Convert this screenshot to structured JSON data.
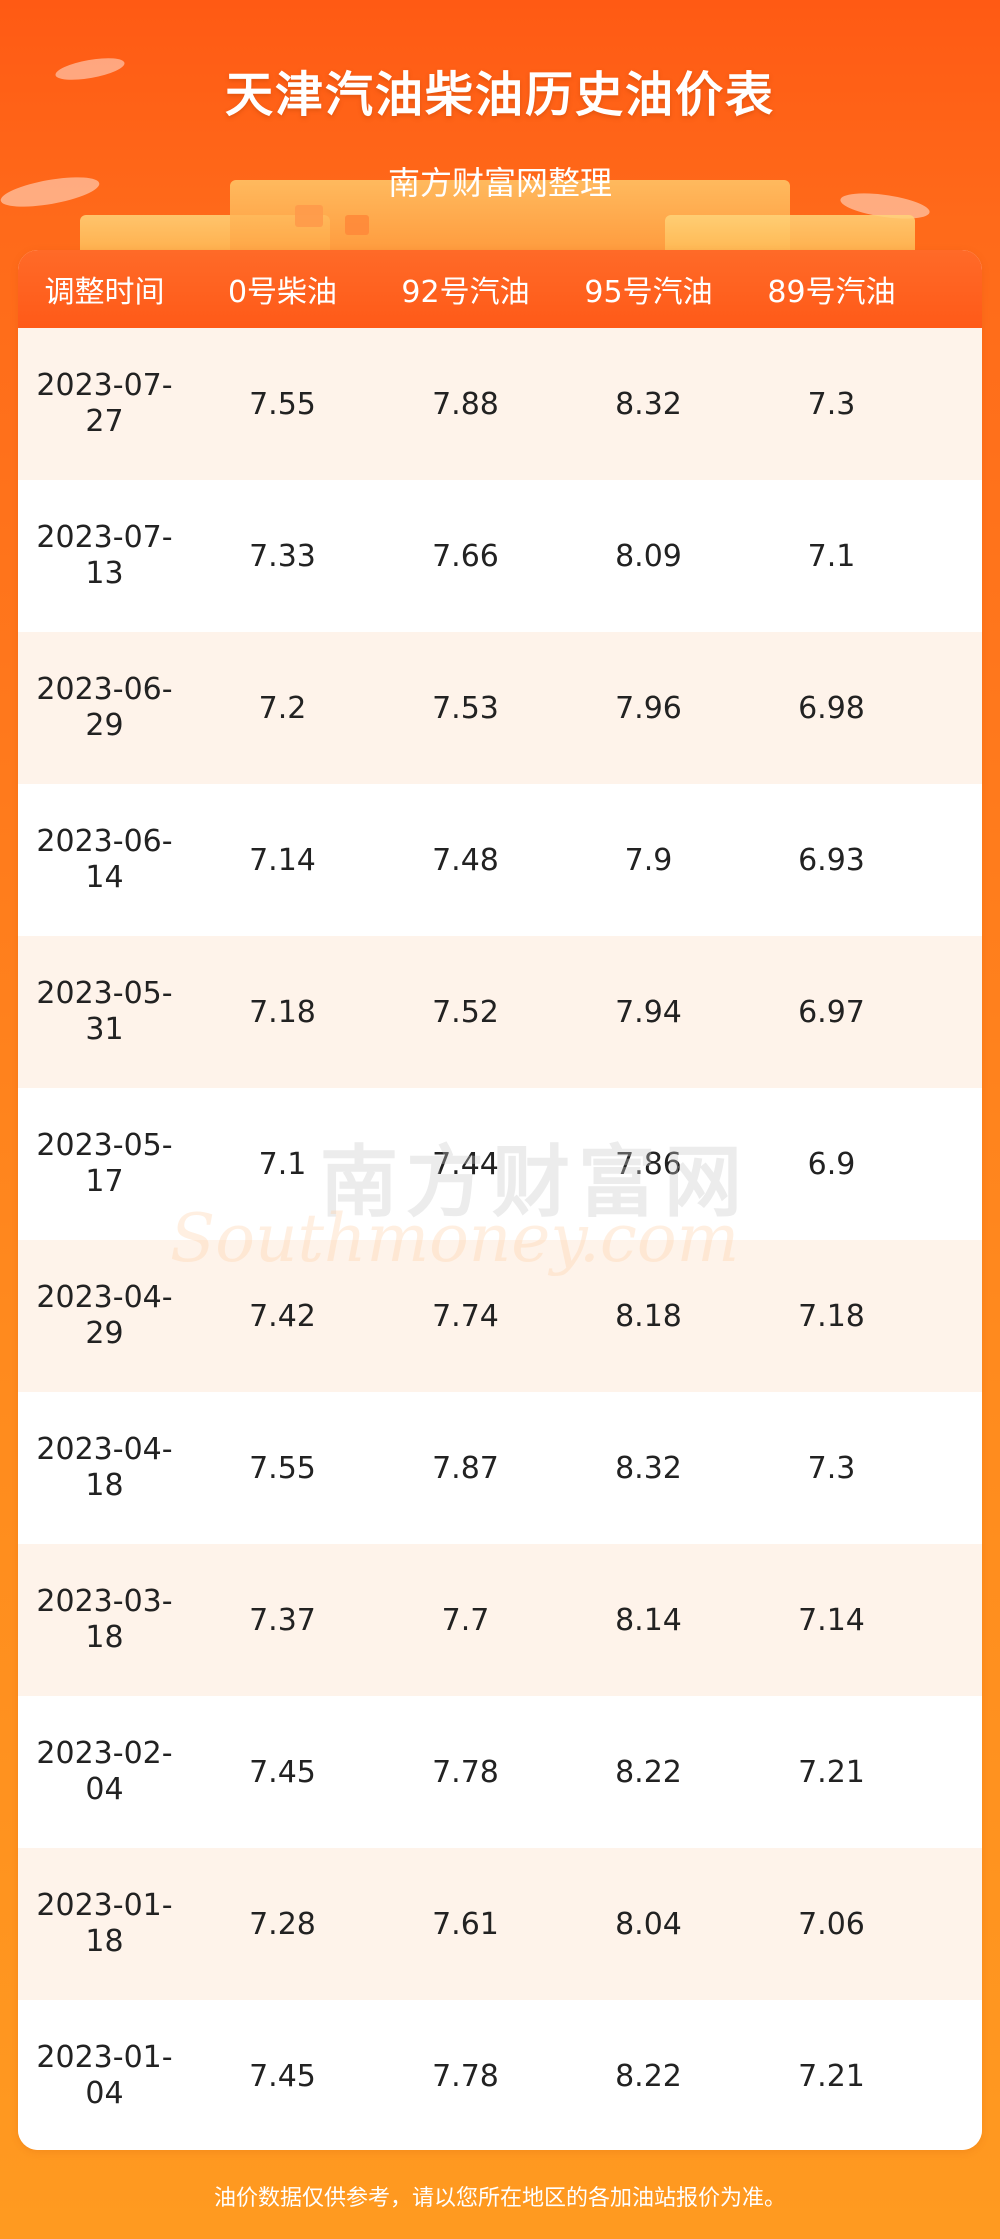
{
  "header": {
    "title": "天津汽油柴油历史油价表",
    "subtitle": "南方财富网整理"
  },
  "table": {
    "columns": [
      "调整时间",
      "0号柴油",
      "92号汽油",
      "95号汽油",
      "89号汽油"
    ],
    "rows": [
      {
        "date_a": "2023-07-",
        "date_b": "27",
        "diesel0": "7.55",
        "gas92": "7.88",
        "gas95": "8.32",
        "gas89": "7.3"
      },
      {
        "date_a": "2023-07-",
        "date_b": "13",
        "diesel0": "7.33",
        "gas92": "7.66",
        "gas95": "8.09",
        "gas89": "7.1"
      },
      {
        "date_a": "2023-06-",
        "date_b": "29",
        "diesel0": "7.2",
        "gas92": "7.53",
        "gas95": "7.96",
        "gas89": "6.98"
      },
      {
        "date_a": "2023-06-",
        "date_b": "14",
        "diesel0": "7.14",
        "gas92": "7.48",
        "gas95": "7.9",
        "gas89": "6.93"
      },
      {
        "date_a": "2023-05-",
        "date_b": "31",
        "diesel0": "7.18",
        "gas92": "7.52",
        "gas95": "7.94",
        "gas89": "6.97"
      },
      {
        "date_a": "2023-05-",
        "date_b": "17",
        "diesel0": "7.1",
        "gas92": "7.44",
        "gas95": "7.86",
        "gas89": "6.9"
      },
      {
        "date_a": "2023-04-",
        "date_b": "29",
        "diesel0": "7.42",
        "gas92": "7.74",
        "gas95": "8.18",
        "gas89": "7.18"
      },
      {
        "date_a": "2023-04-",
        "date_b": "18",
        "diesel0": "7.55",
        "gas92": "7.87",
        "gas95": "8.32",
        "gas89": "7.3"
      },
      {
        "date_a": "2023-03-",
        "date_b": "18",
        "diesel0": "7.37",
        "gas92": "7.7",
        "gas95": "8.14",
        "gas89": "7.14"
      },
      {
        "date_a": "2023-02-",
        "date_b": "04",
        "diesel0": "7.45",
        "gas92": "7.78",
        "gas95": "8.22",
        "gas89": "7.21"
      },
      {
        "date_a": "2023-01-",
        "date_b": "18",
        "diesel0": "7.28",
        "gas92": "7.61",
        "gas95": "8.04",
        "gas89": "7.06"
      },
      {
        "date_a": "2023-01-",
        "date_b": "04",
        "diesel0": "7.45",
        "gas92": "7.78",
        "gas95": "8.22",
        "gas89": "7.21"
      }
    ]
  },
  "watermark": {
    "cn": "南方财富网",
    "en": "Southmoney.com"
  },
  "footer": {
    "note": "油价数据仅供参考，请以您所在地区的各加油站报价为准。"
  }
}
